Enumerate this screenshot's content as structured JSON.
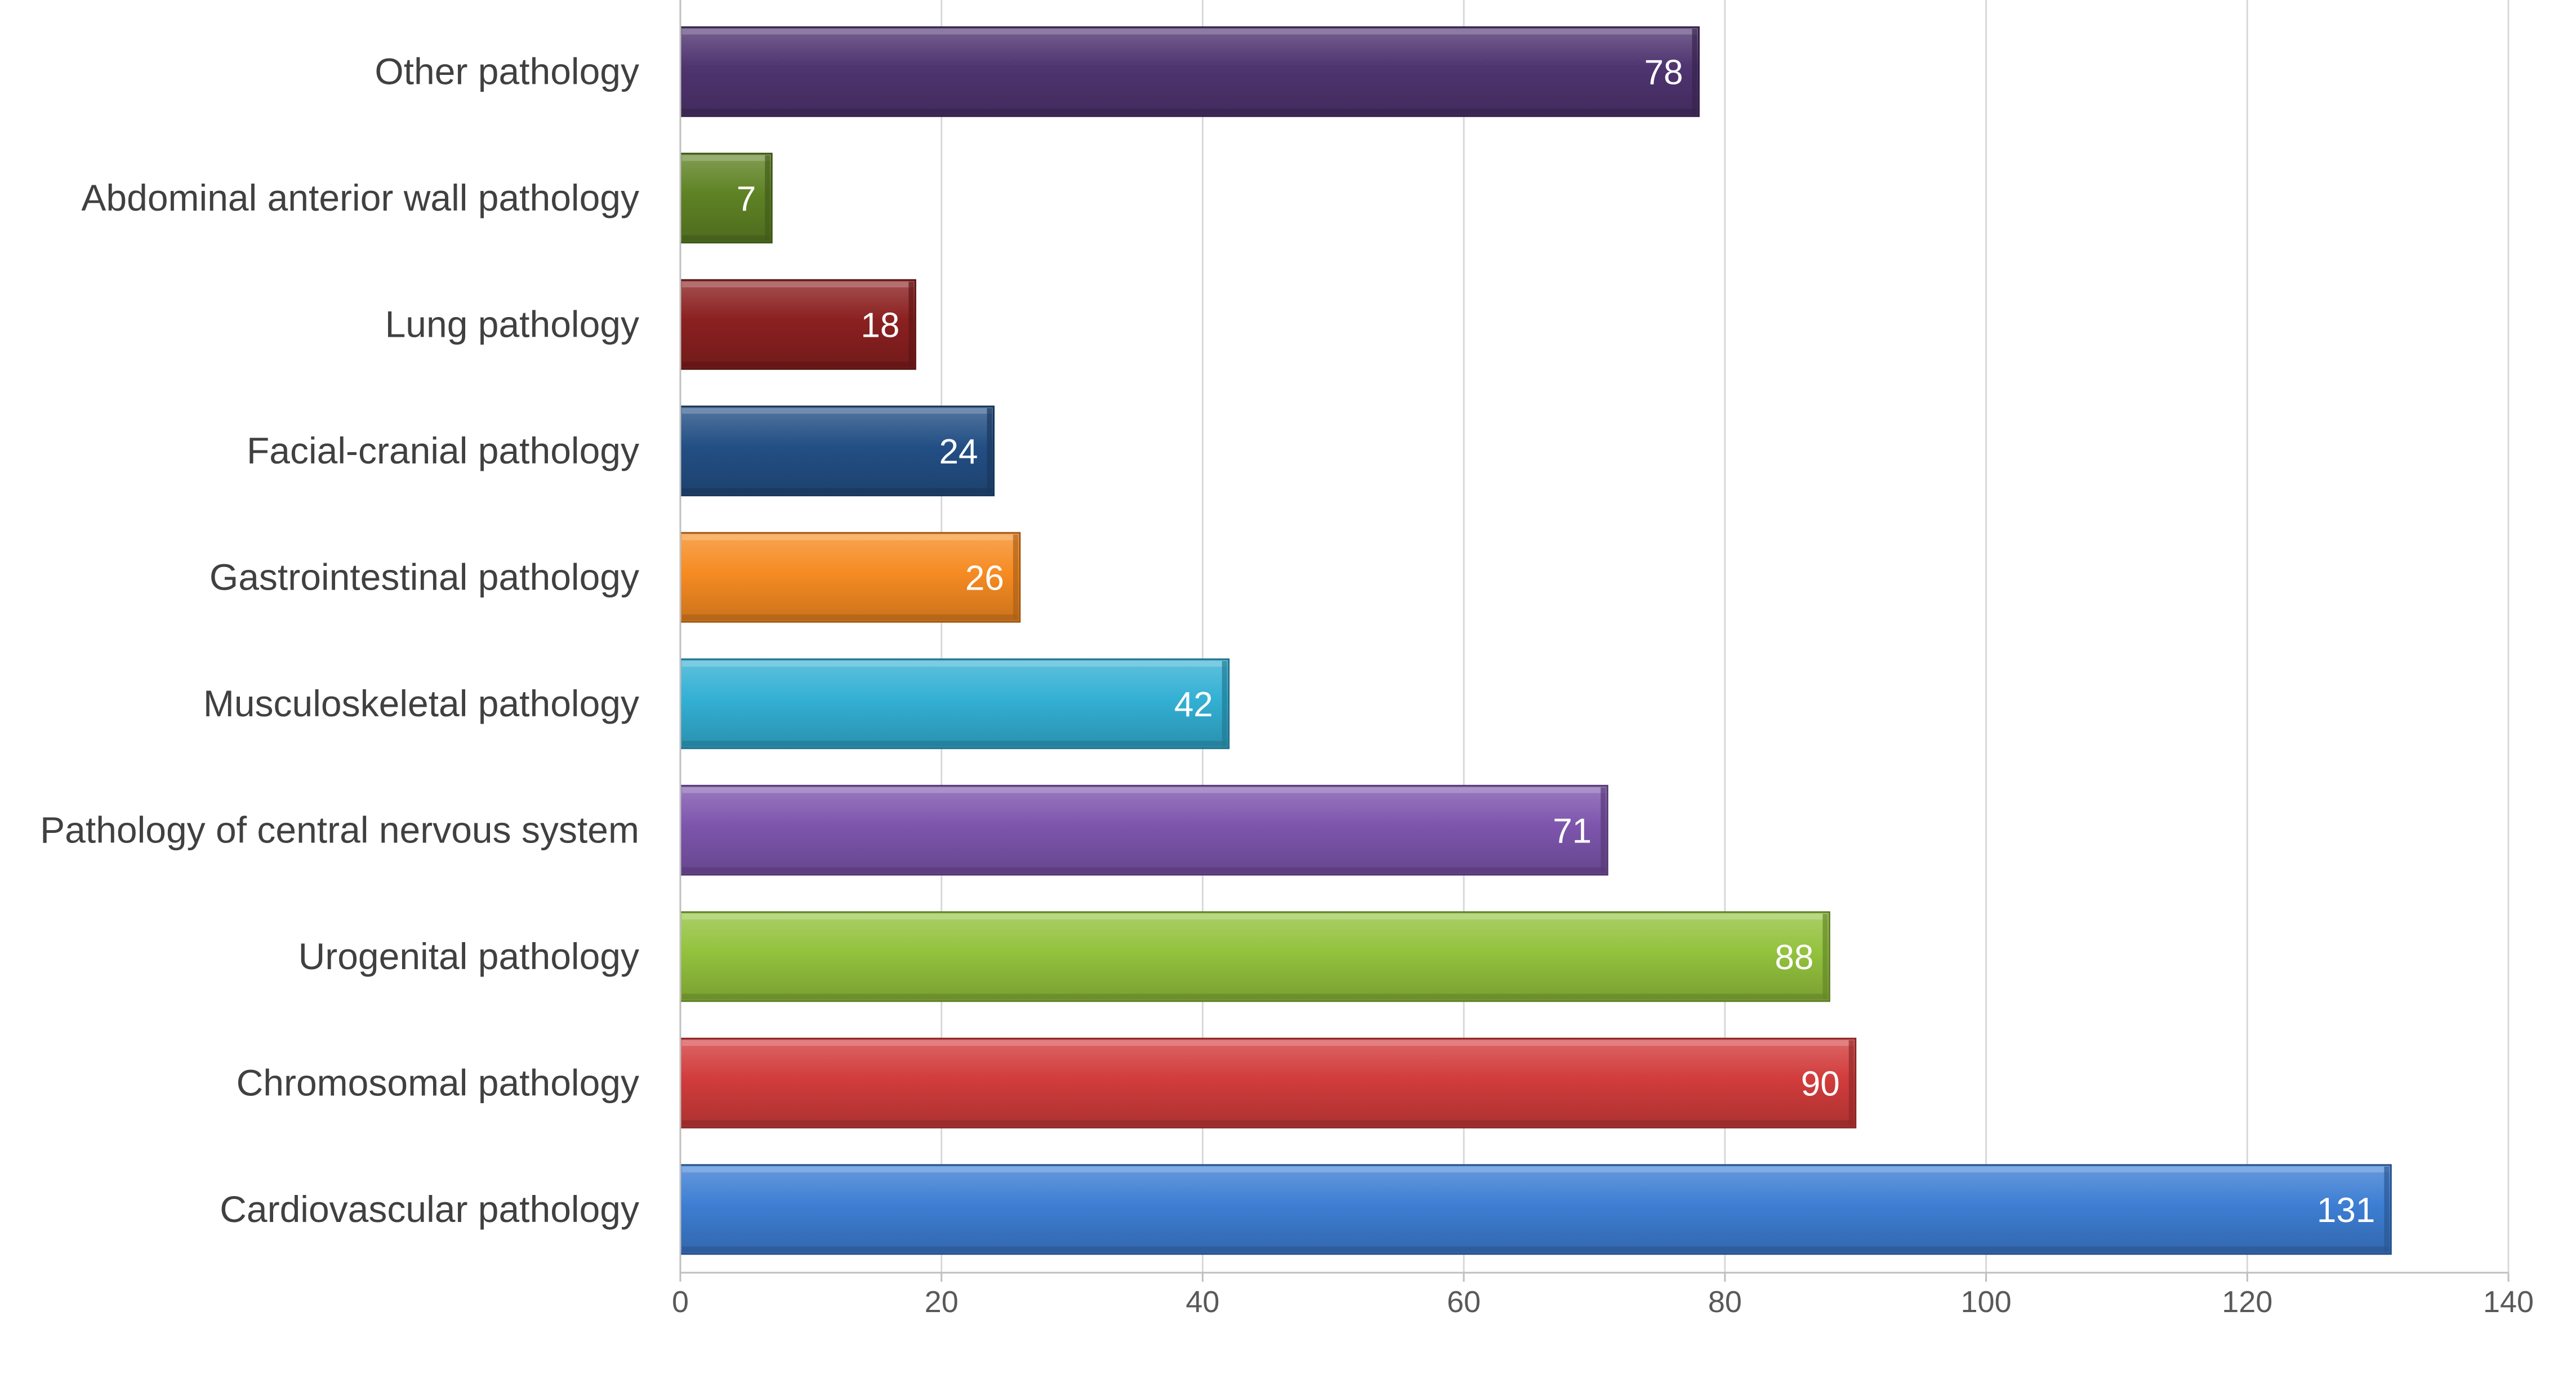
{
  "chart_data": {
    "type": "bar",
    "orientation": "horizontal",
    "categories": [
      "Cardiovascular pathology",
      "Chromosomal pathology",
      "Urogenital pathology",
      "Pathology of central nervous system",
      "Musculoskeletal pathology",
      "Gastrointestinal pathology",
      "Facial-cranial pathology",
      "Lung pathology",
      "Abdominal anterior wall pathology",
      "Other pathology"
    ],
    "values": [
      131,
      90,
      88,
      71,
      42,
      26,
      24,
      18,
      7,
      78
    ],
    "colors": [
      "#3d7ed3",
      "#d23c3c",
      "#93c23d",
      "#7d55ad",
      "#33b0d4",
      "#f68b22",
      "#234f85",
      "#8b2020",
      "#5f8224",
      "#4f3470"
    ],
    "xlim": [
      0,
      140
    ],
    "xticks": [
      0,
      20,
      40,
      60,
      80,
      100,
      120,
      140
    ],
    "grid": true,
    "data_labels": true,
    "legend": "none"
  }
}
